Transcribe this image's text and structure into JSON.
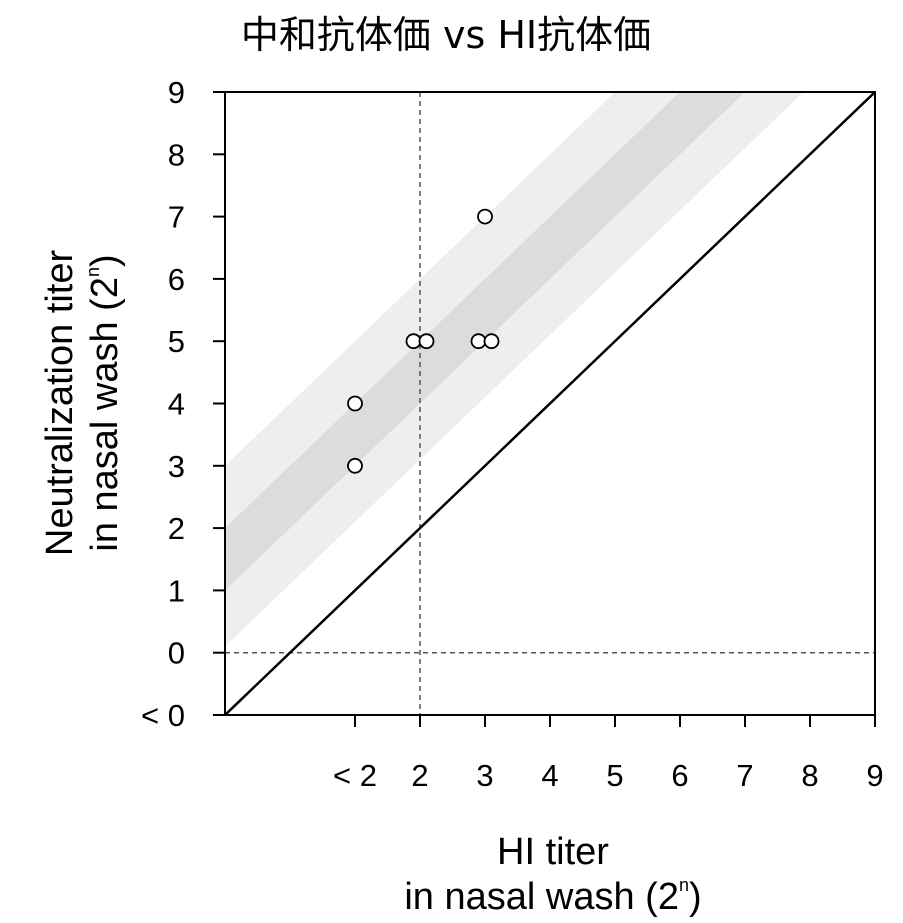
{
  "chart_data": {
    "type": "scatter",
    "title": "中和抗体価 vs HI抗体価",
    "xlabel": {
      "line1": "HI titer",
      "line2_prefix": "in nasal wash (2",
      "superscript": "n",
      "line2_suffix": ")"
    },
    "ylabel": {
      "line1": "Neutralization titer",
      "line2_prefix": "in nasal wash (2",
      "superscript": "n",
      "line2_suffix": ")"
    },
    "xlim": [
      0,
      10
    ],
    "ylim": [
      -1,
      9
    ],
    "x_ticks": [
      {
        "value": 2,
        "label": "< 2"
      },
      {
        "value": 3,
        "label": "2"
      },
      {
        "value": 4,
        "label": "3"
      },
      {
        "value": 5,
        "label": "4"
      },
      {
        "value": 6,
        "label": "5"
      },
      {
        "value": 7,
        "label": "6"
      },
      {
        "value": 8,
        "label": "7"
      },
      {
        "value": 9,
        "label": "8"
      },
      {
        "value": 10,
        "label": "9"
      }
    ],
    "y_ticks": [
      {
        "value": -1,
        "label": "< 0"
      },
      {
        "value": 0,
        "label": "0"
      },
      {
        "value": 1,
        "label": "1"
      },
      {
        "value": 2,
        "label": "2"
      },
      {
        "value": 3,
        "label": "3"
      },
      {
        "value": 4,
        "label": "4"
      },
      {
        "value": 5,
        "label": "5"
      },
      {
        "value": 6,
        "label": "6"
      },
      {
        "value": 7,
        "label": "7"
      },
      {
        "value": 8,
        "label": "8"
      },
      {
        "value": 9,
        "label": "9"
      }
    ],
    "points": [
      {
        "x": 2,
        "y": 4
      },
      {
        "x": 2,
        "y": 3
      },
      {
        "x": 2.9,
        "y": 5
      },
      {
        "x": 3.1,
        "y": 5
      },
      {
        "x": 4,
        "y": 7
      },
      {
        "x": 3.9,
        "y": 5
      },
      {
        "x": 4.1,
        "y": 5
      }
    ],
    "identity_line": {
      "offset": -1
    },
    "bands": [
      {
        "offset_low": 0.1,
        "offset_high": 3,
        "color": "#eeeeee"
      },
      {
        "offset_low": 1,
        "offset_high": 2,
        "color": "#dcdcdc"
      }
    ],
    "reference_lines": {
      "vertical_x": 3,
      "horizontal_y": 0
    },
    "grid": false,
    "colors": {
      "marker_fill": "#ffffff",
      "marker_stroke": "#000000",
      "ref_line": "#555555"
    }
  }
}
